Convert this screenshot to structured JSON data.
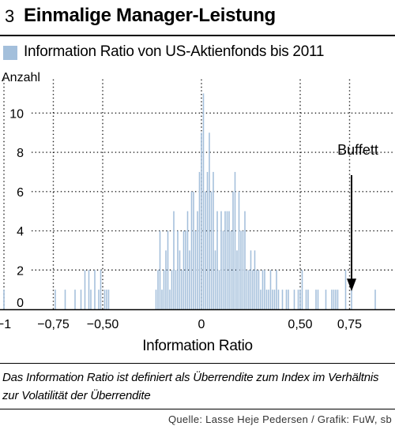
{
  "figure": {
    "number": "3",
    "title": "Einmalige Manager-Leistung",
    "caption": "Das Information Ratio ist definiert als Überrendite zum Index im Verhältnis zur Volatilität der Überrendite",
    "source": "Quelle: Lasse Heje Pedersen / Grafik: FuW, sb"
  },
  "colors": {
    "bar": "#a3bfdb",
    "grid": "#222222",
    "axis": "#000000"
  },
  "chart_data": {
    "type": "bar",
    "legend": "Information Ratio von US-Aktienfonds bis 2011",
    "legend_position": "top-left",
    "xlabel": "Information Ratio",
    "ylabel": "Anzahl",
    "xlim": [
      -1.02,
      0.98
    ],
    "ylim": [
      0,
      11.5
    ],
    "bin_width": 0.01,
    "x_ticks": [
      -1,
      -0.75,
      -0.5,
      0,
      0.5,
      0.75
    ],
    "x_tick_labels": [
      "−1",
      "−0,75",
      "−0,50",
      "0",
      "0,50",
      "0,75"
    ],
    "y_ticks": [
      0,
      2,
      4,
      6,
      8,
      10
    ],
    "y_tick_labels": [
      "0",
      "2",
      "4",
      "6",
      "8",
      "10"
    ],
    "grid": true,
    "bins": [
      [
        -1.0,
        1
      ],
      [
        -0.74,
        1
      ],
      [
        -0.69,
        1
      ],
      [
        -0.64,
        1
      ],
      [
        -0.61,
        1
      ],
      [
        -0.59,
        2
      ],
      [
        -0.57,
        2
      ],
      [
        -0.56,
        1
      ],
      [
        -0.54,
        2
      ],
      [
        -0.52,
        1
      ],
      [
        -0.51,
        2
      ],
      [
        -0.49,
        1
      ],
      [
        -0.48,
        1
      ],
      [
        -0.47,
        1
      ],
      [
        -0.46,
        0
      ],
      [
        -0.45,
        0
      ],
      [
        -0.44,
        0
      ],
      [
        -0.23,
        1
      ],
      [
        -0.22,
        2
      ],
      [
        -0.21,
        4
      ],
      [
        -0.2,
        1
      ],
      [
        -0.19,
        2
      ],
      [
        -0.18,
        3
      ],
      [
        -0.17,
        4
      ],
      [
        -0.16,
        1
      ],
      [
        -0.15,
        2
      ],
      [
        -0.14,
        5
      ],
      [
        -0.13,
        2
      ],
      [
        -0.12,
        4
      ],
      [
        -0.11,
        3
      ],
      [
        -0.1,
        2
      ],
      [
        -0.09,
        4
      ],
      [
        -0.08,
        4
      ],
      [
        -0.07,
        5
      ],
      [
        -0.06,
        3
      ],
      [
        -0.05,
        6
      ],
      [
        -0.04,
        6
      ],
      [
        -0.03,
        4
      ],
      [
        -0.02,
        5
      ],
      [
        -0.01,
        7
      ],
      [
        0.0,
        9
      ],
      [
        0.01,
        11
      ],
      [
        0.02,
        6
      ],
      [
        0.03,
        7
      ],
      [
        0.04,
        9
      ],
      [
        0.05,
        6
      ],
      [
        0.06,
        7
      ],
      [
        0.07,
        3
      ],
      [
        0.08,
        5
      ],
      [
        0.09,
        2
      ],
      [
        0.1,
        5
      ],
      [
        0.11,
        4
      ],
      [
        0.12,
        5
      ],
      [
        0.13,
        5
      ],
      [
        0.14,
        5
      ],
      [
        0.15,
        4
      ],
      [
        0.16,
        6
      ],
      [
        0.17,
        7
      ],
      [
        0.18,
        3
      ],
      [
        0.19,
        6
      ],
      [
        0.2,
        4
      ],
      [
        0.21,
        4
      ],
      [
        0.22,
        5
      ],
      [
        0.23,
        2
      ],
      [
        0.24,
        2
      ],
      [
        0.25,
        3
      ],
      [
        0.26,
        2
      ],
      [
        0.27,
        3
      ],
      [
        0.28,
        2
      ],
      [
        0.29,
        2
      ],
      [
        0.3,
        1
      ],
      [
        0.31,
        2
      ],
      [
        0.32,
        2
      ],
      [
        0.33,
        1
      ],
      [
        0.34,
        1
      ],
      [
        0.35,
        2
      ],
      [
        0.36,
        1
      ],
      [
        0.37,
        1
      ],
      [
        0.38,
        2
      ],
      [
        0.39,
        1
      ],
      [
        0.41,
        1
      ],
      [
        0.43,
        1
      ],
      [
        0.44,
        1
      ],
      [
        0.47,
        1
      ],
      [
        0.49,
        1
      ],
      [
        0.5,
        1
      ],
      [
        0.51,
        2
      ],
      [
        0.53,
        1
      ],
      [
        0.54,
        1
      ],
      [
        0.58,
        1
      ],
      [
        0.59,
        1
      ],
      [
        0.63,
        1
      ],
      [
        0.66,
        1
      ],
      [
        0.67,
        1
      ],
      [
        0.68,
        1
      ],
      [
        0.69,
        1
      ],
      [
        0.73,
        2
      ],
      [
        0.76,
        1
      ],
      [
        0.88,
        1
      ]
    ],
    "annotation": {
      "text": "Buffett",
      "x": 0.76,
      "y_top": 8,
      "y_arrow": 1
    }
  }
}
